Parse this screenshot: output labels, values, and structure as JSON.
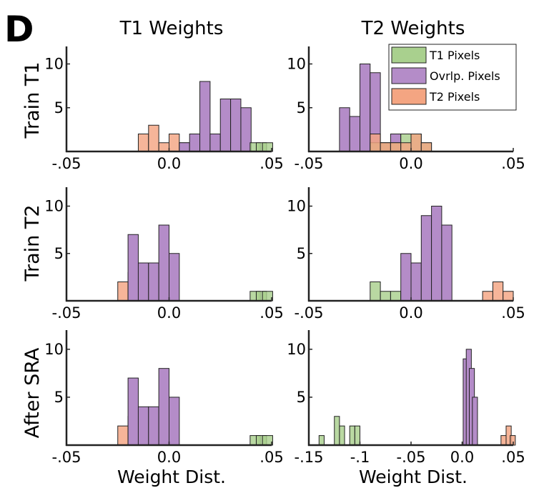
{
  "figure": {
    "panel_letter": "D",
    "column_titles": [
      "T1 Weights",
      "T2 Weights"
    ],
    "row_labels": [
      "Train T1",
      "Train T2",
      "After SRA"
    ],
    "xlabel": "Weight Dist.",
    "colors": {
      "T1 Pixels": "#a9d08e",
      "Ovrlp. Pixels": "#b48cc8",
      "T2 Pixels": "#f4a582",
      "edge": "#222222"
    },
    "legend": {
      "placement": "top-right of right column, top row",
      "entries": [
        "T1 Pixels",
        "Ovrlp. Pixels",
        "T2 Pixels"
      ]
    }
  },
  "chart_data": [
    {
      "type": "bar",
      "row": 0,
      "col": 0,
      "xlim": [
        -0.05,
        0.05
      ],
      "ylim": [
        0,
        12
      ],
      "xticks": [
        -0.05,
        0.0,
        0.05
      ],
      "xtick_labels": [
        "-.05",
        "0.0",
        ".05"
      ],
      "yticks": [
        5,
        10
      ],
      "ytick_labels": [
        "5",
        "10"
      ],
      "bin_width": 0.005,
      "series": [
        {
          "name": "T2 Pixels",
          "bins": [
            [
              -0.0125,
              2
            ],
            [
              -0.0075,
              3
            ],
            [
              -0.0025,
              1
            ],
            [
              0.0025,
              2
            ],
            [
              0.0075,
              1
            ]
          ]
        },
        {
          "name": "Ovrlp. Pixels",
          "bins": [
            [
              0.0075,
              1
            ],
            [
              0.0125,
              2
            ],
            [
              0.0175,
              8
            ],
            [
              0.0225,
              2
            ],
            [
              0.0275,
              6
            ],
            [
              0.0325,
              6
            ],
            [
              0.0375,
              5
            ]
          ]
        },
        {
          "name": "T1 Pixels",
          "bins": [
            [
              0.042,
              1
            ],
            [
              0.045,
              1
            ],
            [
              0.048,
              1
            ]
          ]
        }
      ]
    },
    {
      "type": "bar",
      "row": 0,
      "col": 1,
      "xlim": [
        -0.05,
        0.05
      ],
      "ylim": [
        0,
        12
      ],
      "xticks": [
        -0.05,
        0.0,
        0.05
      ],
      "xtick_labels": [
        "-.05",
        "0.0",
        ".05"
      ],
      "yticks": [
        5,
        10
      ],
      "ytick_labels": [
        "5",
        "10"
      ],
      "bin_width": 0.005,
      "series": [
        {
          "name": "Ovrlp. Pixels",
          "bins": [
            [
              -0.0325,
              5
            ],
            [
              -0.0275,
              4
            ],
            [
              -0.0225,
              10
            ],
            [
              -0.0175,
              9
            ],
            [
              -0.0125,
              1
            ],
            [
              -0.0075,
              2
            ]
          ]
        },
        {
          "name": "T1 Pixels",
          "bins": [
            [
              -0.0175,
              1
            ],
            [
              -0.0125,
              1
            ],
            [
              -0.0075,
              1
            ],
            [
              -0.0025,
              2
            ],
            [
              0.0025,
              2
            ],
            [
              0.0075,
              1
            ]
          ]
        },
        {
          "name": "T2 Pixels",
          "bins": [
            [
              -0.0175,
              2
            ],
            [
              -0.0125,
              1
            ],
            [
              -0.0075,
              1
            ],
            [
              -0.0025,
              1
            ],
            [
              0.0025,
              2
            ],
            [
              0.0075,
              1
            ]
          ]
        }
      ]
    },
    {
      "type": "bar",
      "row": 1,
      "col": 0,
      "xlim": [
        -0.05,
        0.05
      ],
      "ylim": [
        0,
        12
      ],
      "xticks": [
        -0.05,
        0.0,
        0.05
      ],
      "xtick_labels": [
        "-.05",
        "0.0",
        ".05"
      ],
      "yticks": [
        5,
        10
      ],
      "ytick_labels": [
        "5",
        "10"
      ],
      "bin_width": 0.005,
      "series": [
        {
          "name": "T2 Pixels",
          "bins": [
            [
              -0.0225,
              2
            ],
            [
              -0.0175,
              3
            ],
            [
              -0.0125,
              1
            ],
            [
              -0.0075,
              2
            ]
          ]
        },
        {
          "name": "Ovrlp. Pixels",
          "bins": [
            [
              -0.0175,
              7
            ],
            [
              -0.0125,
              4
            ],
            [
              -0.0075,
              4
            ],
            [
              -0.0025,
              8
            ],
            [
              0.0025,
              5
            ]
          ]
        },
        {
          "name": "T1 Pixels",
          "bins": [
            [
              0.042,
              1
            ],
            [
              0.045,
              1
            ],
            [
              0.048,
              1
            ]
          ]
        }
      ]
    },
    {
      "type": "bar",
      "row": 1,
      "col": 1,
      "xlim": [
        -0.05,
        0.05
      ],
      "ylim": [
        0,
        12
      ],
      "xticks": [
        -0.05,
        0.0,
        0.05
      ],
      "xtick_labels": [
        "-.05",
        "0.0",
        ".05"
      ],
      "yticks": [
        5,
        10
      ],
      "ytick_labels": [
        "5",
        "10"
      ],
      "bin_width": 0.005,
      "series": [
        {
          "name": "T1 Pixels",
          "bins": [
            [
              -0.0175,
              2
            ],
            [
              -0.0125,
              1
            ],
            [
              -0.0075,
              1
            ],
            [
              -0.0025,
              1
            ],
            [
              0.0025,
              2
            ]
          ]
        },
        {
          "name": "Ovrlp. Pixels",
          "bins": [
            [
              -0.0025,
              5
            ],
            [
              0.0025,
              4
            ],
            [
              0.0075,
              9
            ],
            [
              0.0125,
              10
            ],
            [
              0.0175,
              8
            ]
          ]
        },
        {
          "name": "T2 Pixels",
          "bins": [
            [
              0.0375,
              1
            ],
            [
              0.0425,
              2
            ],
            [
              0.0475,
              1
            ]
          ]
        }
      ]
    },
    {
      "type": "bar",
      "row": 2,
      "col": 0,
      "xlim": [
        -0.05,
        0.05
      ],
      "ylim": [
        0,
        12
      ],
      "xticks": [
        -0.05,
        0.0,
        0.05
      ],
      "xtick_labels": [
        "-.05",
        "0.0",
        ".05"
      ],
      "yticks": [
        5,
        10
      ],
      "ytick_labels": [
        "5",
        "10"
      ],
      "bin_width": 0.005,
      "series": [
        {
          "name": "T2 Pixels",
          "bins": [
            [
              -0.0225,
              2
            ],
            [
              -0.0175,
              3
            ],
            [
              -0.0125,
              1
            ],
            [
              -0.0075,
              2
            ]
          ]
        },
        {
          "name": "Ovrlp. Pixels",
          "bins": [
            [
              -0.0175,
              7
            ],
            [
              -0.0125,
              4
            ],
            [
              -0.0075,
              4
            ],
            [
              -0.0025,
              8
            ],
            [
              0.0025,
              5
            ]
          ]
        },
        {
          "name": "T1 Pixels",
          "bins": [
            [
              0.042,
              1
            ],
            [
              0.045,
              1
            ],
            [
              0.048,
              1
            ]
          ]
        }
      ]
    },
    {
      "type": "bar",
      "row": 2,
      "col": 1,
      "xlim": [
        -0.15,
        0.05
      ],
      "ylim": [
        0,
        12
      ],
      "xticks": [
        -0.15,
        -0.1,
        -0.05,
        0.0,
        0.05
      ],
      "xtick_labels": [
        "-.15",
        "-.1",
        "-.05",
        "0.0",
        ".05"
      ],
      "yticks": [
        5,
        10
      ],
      "ytick_labels": [
        "5",
        "10"
      ],
      "bin_width": 0.005,
      "series": [
        {
          "name": "T1 Pixels",
          "bins": [
            [
              -0.1375,
              1
            ],
            [
              -0.1225,
              3
            ],
            [
              -0.1175,
              2
            ],
            [
              -0.1075,
              2
            ],
            [
              -0.1025,
              2
            ]
          ]
        },
        {
          "name": "Ovrlp. Pixels",
          "bins": [
            [
              0.0035,
              9
            ],
            [
              0.0065,
              10
            ],
            [
              0.0095,
              8
            ],
            [
              0.0125,
              5
            ]
          ]
        },
        {
          "name": "T2 Pixels",
          "bins": [
            [
              0.0405,
              1
            ],
            [
              0.0455,
              2
            ],
            [
              0.0495,
              1
            ]
          ]
        }
      ]
    }
  ]
}
